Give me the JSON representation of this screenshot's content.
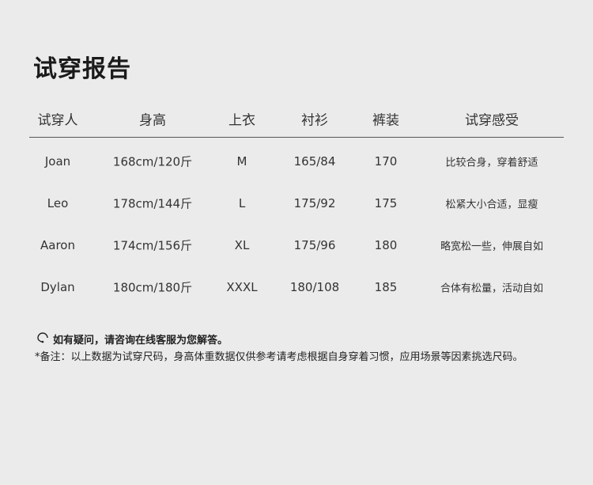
{
  "title": "试穿报告",
  "headers": [
    "试穿人",
    "身高",
    "上衣",
    "衬衫",
    "裤装",
    "试穿感受"
  ],
  "rows": [
    [
      "Joan",
      "168cm/120斤",
      "M",
      "165/84",
      "170",
      "比较合身，穿着舒适"
    ],
    [
      "Leo",
      "178cm/144斤",
      "L",
      "175/92",
      "175",
      "松紧大小合适，显瘦"
    ],
    [
      "Aaron",
      "174cm/156斤",
      "XL",
      "175/96",
      "180",
      "略宽松一些，伸展自如"
    ],
    [
      "Dylan",
      "180cm/180斤",
      "XXXL",
      "180/108",
      "185",
      "合体有松量，活动自如"
    ]
  ],
  "help_text": "如有疑问，请咨询在线客服为您解答。",
  "help_icon": "customer-service-headset-icon",
  "remark": "*备注：以上数据为试穿尺码，身高体重数据仅供参考请考虑根据自身穿着习惯，应用场景等因素挑选尺码。"
}
